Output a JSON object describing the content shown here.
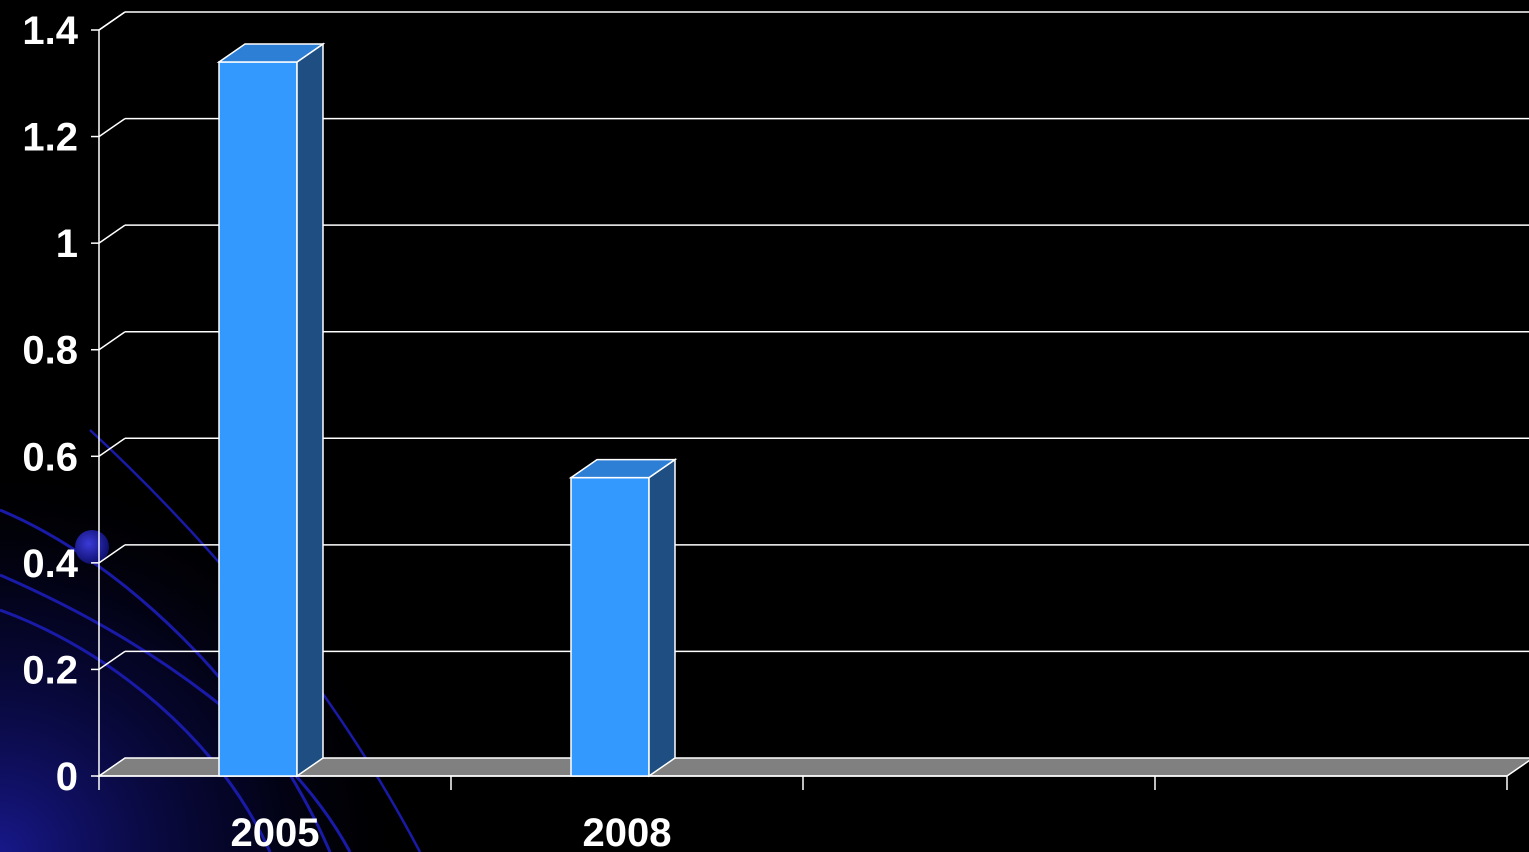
{
  "chart_data": {
    "type": "bar",
    "style": "3d-column",
    "categories": [
      "2005",
      "2008",
      "",
      "",
      ""
    ],
    "values": [
      1.34,
      0.56,
      null,
      null,
      null
    ],
    "ylim": [
      0,
      1.4
    ],
    "yticks": [
      "0",
      "0.2",
      "0.4",
      "0.6",
      "0.8",
      "1",
      "1.2",
      "1.4"
    ],
    "grid": true,
    "legend": "none"
  },
  "colors": {
    "background": "#000000",
    "bar_front": "#3399ff",
    "bar_top": "#2d7fd6",
    "bar_side": "#1f4f82",
    "floor": "#808080",
    "gridline": "#ffffff",
    "text": "#ffffff",
    "decor_swirl": "#1a1aa8"
  }
}
